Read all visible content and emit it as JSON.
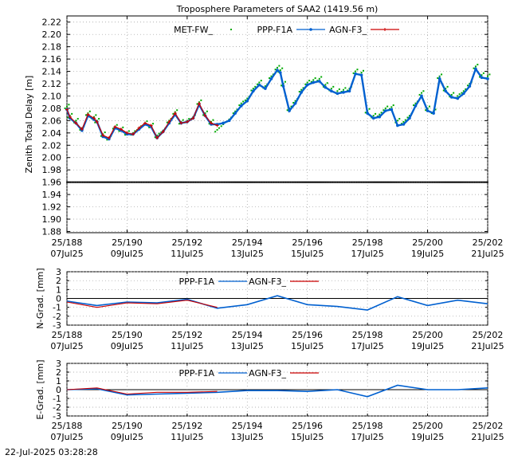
{
  "footer_timestamp": "22-Jul-2025 03:28:28",
  "chart_data": [
    {
      "type": "scatter",
      "title": "Troposphere Parameters of SAA2 (1419.56 m)",
      "ylabel": "Zenith Total Delay [m]",
      "xlabel": "",
      "ylim": [
        1.878,
        2.23
      ],
      "yticks": [
        "1.88",
        "1.90",
        "1.92",
        "1.94",
        "1.96",
        "1.98",
        "2.00",
        "2.02",
        "2.04",
        "2.06",
        "2.08",
        "2.10",
        "2.12",
        "2.14",
        "2.16",
        "2.18",
        "2.20",
        "2.22"
      ],
      "xlim": [
        188,
        202
      ],
      "xticks_doy": [
        "25/188",
        "25/190",
        "25/192",
        "25/194",
        "25/196",
        "25/198",
        "25/200",
        "25/202"
      ],
      "xticks_date": [
        "07Jul25",
        "09Jul25",
        "11Jul25",
        "13Jul25",
        "15Jul25",
        "17Jul25",
        "19Jul25",
        "21Jul25"
      ],
      "grid": true,
      "legend": [
        "MET-FW_",
        "PPP-F1A",
        "AGN-F3_"
      ],
      "series": [
        {
          "name": "MET-FW_",
          "color": "#00aa00",
          "style": "dots",
          "x": [
            188.0,
            188.1,
            188.3,
            188.5,
            188.7,
            188.9,
            189.0,
            189.2,
            189.4,
            189.6,
            189.8,
            190.0,
            190.2,
            190.4,
            190.6,
            190.8,
            191.0,
            191.2,
            191.4,
            191.6,
            191.8,
            192.0,
            192.2,
            192.4,
            192.6,
            192.8,
            193.0,
            193.2,
            193.4,
            193.6,
            193.8,
            194.0,
            194.2,
            194.4,
            194.6,
            194.8,
            195.0,
            195.1,
            195.2,
            195.4,
            195.6,
            195.8,
            196.0,
            196.2,
            196.4,
            196.6,
            196.8,
            197.0,
            197.2,
            197.4,
            197.6,
            197.8,
            198.0,
            198.2,
            198.4,
            198.6,
            198.8,
            199.0,
            199.2,
            199.4,
            199.6,
            199.8,
            200.0,
            200.2,
            200.4,
            200.6,
            200.8,
            201.0,
            201.2,
            201.4,
            201.6,
            201.8,
            202.0
          ],
          "y": [
            2.083,
            2.068,
            2.06,
            2.048,
            2.072,
            2.066,
            2.06,
            2.038,
            2.032,
            2.05,
            2.046,
            2.04,
            2.04,
            2.048,
            2.056,
            2.052,
            2.036,
            2.044,
            2.06,
            2.074,
            2.058,
            2.06,
            2.066,
            2.09,
            2.072,
            2.058,
            2.045,
            2.054,
            2.062,
            2.075,
            2.088,
            2.096,
            2.112,
            2.122,
            2.116,
            2.132,
            2.146,
            2.142,
            2.12,
            2.08,
            2.092,
            2.11,
            2.122,
            2.126,
            2.128,
            2.118,
            2.112,
            2.108,
            2.11,
            2.112,
            2.14,
            2.138,
            2.076,
            2.068,
            2.07,
            2.08,
            2.082,
            2.06,
            2.058,
            2.068,
            2.088,
            2.105,
            2.08,
            2.075,
            2.132,
            2.112,
            2.102,
            2.1,
            2.108,
            2.12,
            2.148,
            2.134,
            2.132
          ]
        },
        {
          "name": "PPP-F1A",
          "color": "#0060d0",
          "style": "line-dots",
          "x": [
            188.0,
            188.1,
            188.3,
            188.5,
            188.7,
            188.9,
            189.0,
            189.2,
            189.4,
            189.6,
            189.8,
            190.0,
            190.2,
            190.4,
            190.6,
            190.8,
            191.0,
            191.2,
            191.4,
            191.6,
            191.8,
            192.0,
            192.2,
            192.4,
            192.6,
            192.8,
            193.0,
            193.2,
            193.4,
            193.6,
            193.8,
            194.0,
            194.2,
            194.4,
            194.6,
            194.8,
            195.0,
            195.1,
            195.2,
            195.4,
            195.6,
            195.8,
            196.0,
            196.2,
            196.4,
            196.6,
            196.8,
            197.0,
            197.2,
            197.4,
            197.6,
            197.8,
            198.0,
            198.2,
            198.4,
            198.6,
            198.8,
            199.0,
            199.2,
            199.4,
            199.6,
            199.8,
            200.0,
            200.2,
            200.4,
            200.6,
            200.8,
            201.0,
            201.2,
            201.4,
            201.6,
            201.8,
            202.0
          ],
          "y": [
            2.078,
            2.064,
            2.056,
            2.044,
            2.068,
            2.062,
            2.058,
            2.034,
            2.03,
            2.048,
            2.044,
            2.038,
            2.038,
            2.046,
            2.054,
            2.05,
            2.032,
            2.042,
            2.056,
            2.07,
            2.056,
            2.058,
            2.064,
            2.086,
            2.068,
            2.054,
            2.054,
            2.056,
            2.06,
            2.072,
            2.084,
            2.092,
            2.108,
            2.118,
            2.112,
            2.128,
            2.142,
            2.138,
            2.116,
            2.076,
            2.088,
            2.106,
            2.118,
            2.122,
            2.124,
            2.114,
            2.108,
            2.104,
            2.106,
            2.108,
            2.136,
            2.134,
            2.072,
            2.064,
            2.066,
            2.076,
            2.078,
            2.052,
            2.054,
            2.064,
            2.084,
            2.1,
            2.076,
            2.072,
            2.128,
            2.108,
            2.098,
            2.096,
            2.104,
            2.116,
            2.144,
            2.13,
            2.128
          ]
        },
        {
          "name": "AGN-F3_",
          "color": "#cc0000",
          "style": "line-cross",
          "x": [
            188.0,
            188.1,
            188.3,
            188.5,
            188.7,
            188.9,
            189.0,
            189.2,
            189.4,
            189.6,
            189.8,
            190.0,
            190.2,
            190.4,
            190.6,
            190.8,
            191.0,
            191.2,
            191.4,
            191.6,
            191.8,
            192.0,
            192.2,
            192.4,
            192.6,
            192.8,
            193.0
          ],
          "y": [
            2.078,
            2.066,
            2.056,
            2.046,
            2.07,
            2.064,
            2.058,
            2.036,
            2.032,
            2.05,
            2.046,
            2.04,
            2.038,
            2.048,
            2.056,
            2.052,
            2.032,
            2.042,
            2.058,
            2.072,
            2.056,
            2.058,
            2.064,
            2.088,
            2.068,
            2.056,
            2.052
          ]
        },
        {
          "name": "constant-line",
          "color": "#000000",
          "style": "dots",
          "x": [
            188,
            202
          ],
          "y": [
            1.96,
            1.96
          ]
        }
      ]
    },
    {
      "type": "line",
      "title": "",
      "ylabel": "N-Grad. [mm]",
      "xlabel": "",
      "ylim": [
        -3,
        3
      ],
      "yticks": [
        "-3",
        "-2",
        "-1",
        "0",
        "1",
        "2",
        "3"
      ],
      "xlim": [
        188,
        202
      ],
      "xticks_doy": [
        "25/188",
        "25/190",
        "25/192",
        "25/194",
        "25/196",
        "25/198",
        "25/200",
        "25/202"
      ],
      "xticks_date": [
        "07Jul25",
        "09Jul25",
        "11Jul25",
        "13Jul25",
        "15Jul25",
        "17Jul25",
        "19Jul25",
        "21Jul25"
      ],
      "grid": true,
      "legend": [
        "PPP-F1A",
        "AGN-F3_"
      ],
      "series": [
        {
          "name": "PPP-F1A",
          "color": "#0060d0",
          "x": [
            188,
            189,
            190,
            191,
            192,
            193,
            194,
            195,
            196,
            197,
            198,
            199,
            200,
            201,
            202
          ],
          "y": [
            -0.3,
            -0.8,
            -0.4,
            -0.5,
            -0.1,
            -1.1,
            -0.7,
            0.3,
            -0.7,
            -0.9,
            -1.3,
            0.2,
            -0.8,
            -0.2,
            -0.6
          ]
        },
        {
          "name": "AGN-F3_",
          "color": "#cc0000",
          "x": [
            188,
            189,
            190,
            191,
            192,
            193
          ],
          "y": [
            -0.4,
            -1.0,
            -0.5,
            -0.6,
            -0.2,
            -1.0
          ]
        }
      ]
    },
    {
      "type": "line",
      "title": "",
      "ylabel": "E-Grad. [mm]",
      "xlabel": "",
      "ylim": [
        -3,
        3
      ],
      "yticks": [
        "-3",
        "-2",
        "-1",
        "0",
        "1",
        "2",
        "3"
      ],
      "xlim": [
        188,
        202
      ],
      "xticks_doy": [
        "25/188",
        "25/190",
        "25/192",
        "25/194",
        "25/196",
        "25/198",
        "25/200",
        "25/202"
      ],
      "xticks_date": [
        "07Jul25",
        "09Jul25",
        "11Jul25",
        "13Jul25",
        "15Jul25",
        "17Jul25",
        "19Jul25",
        "21Jul25"
      ],
      "grid": true,
      "legend": [
        "PPP-F1A",
        "AGN-F3_"
      ],
      "series": [
        {
          "name": "PPP-F1A",
          "color": "#0060d0",
          "x": [
            188,
            189,
            190,
            191,
            192,
            193,
            194,
            195,
            196,
            197,
            198,
            199,
            200,
            201,
            202
          ],
          "y": [
            0.0,
            0.1,
            -0.6,
            -0.5,
            -0.4,
            -0.3,
            -0.1,
            -0.1,
            -0.2,
            0.0,
            -0.8,
            0.5,
            0.0,
            0.0,
            0.2
          ]
        },
        {
          "name": "AGN-F3_",
          "color": "#cc0000",
          "x": [
            188,
            189,
            190,
            191,
            192,
            193
          ],
          "y": [
            0.0,
            0.2,
            -0.5,
            -0.3,
            -0.3,
            -0.2
          ]
        }
      ]
    }
  ]
}
